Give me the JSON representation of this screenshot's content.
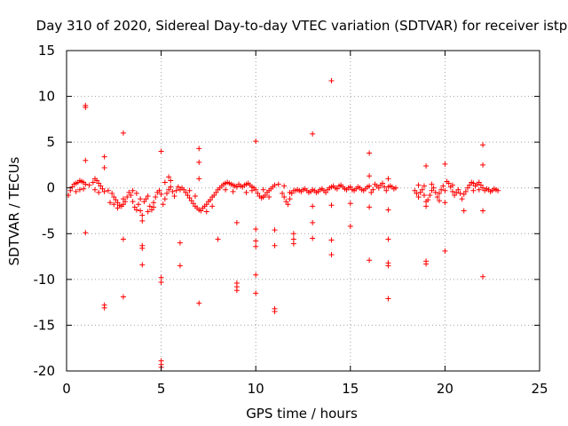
{
  "chart_data": {
    "type": "scatter",
    "title": "Day 310 of 2020, Sidereal Day-to-day VTEC variation (SDTVAR) for receiver istp",
    "xlabel": "GPS time / hours",
    "ylabel": "SDTVAR / TECUs",
    "xlim": [
      0,
      25
    ],
    "ylim": [
      -20,
      15
    ],
    "xticks": [
      "0",
      "5",
      "10",
      "15",
      "20",
      "25"
    ],
    "yticks": [
      "15",
      "10",
      "5",
      "0",
      "-5",
      "-10",
      "-15",
      "-20"
    ],
    "grid": true,
    "marker": "plus",
    "marker_color": "#ff0000",
    "series": [
      {
        "name": "SDTVAR",
        "points": [
          [
            0.1,
            -0.8
          ],
          [
            0.2,
            -0.3
          ],
          [
            0.3,
            0.1
          ],
          [
            0.4,
            0.4
          ],
          [
            0.5,
            0.5
          ],
          [
            0.6,
            0.6
          ],
          [
            0.7,
            0.8
          ],
          [
            0.8,
            0.7
          ],
          [
            0.9,
            0.6
          ],
          [
            1.0,
            0.4
          ],
          [
            0.5,
            -0.4
          ],
          [
            0.7,
            -0.2
          ],
          [
            0.9,
            -0.1
          ],
          [
            1.0,
            8.8
          ],
          [
            1.0,
            9.0
          ],
          [
            1.0,
            3.0
          ],
          [
            1.0,
            -4.9
          ],
          [
            1.2,
            0.3
          ],
          [
            1.4,
            0.6
          ],
          [
            1.5,
            1.0
          ],
          [
            1.6,
            0.8
          ],
          [
            1.7,
            0.5
          ],
          [
            1.8,
            0.2
          ],
          [
            1.9,
            -0.1
          ],
          [
            2.0,
            -0.4
          ],
          [
            1.5,
            -0.2
          ],
          [
            1.7,
            -0.5
          ],
          [
            2.0,
            3.4
          ],
          [
            2.0,
            2.2
          ],
          [
            2.0,
            -12.8
          ],
          [
            2.0,
            -13.1
          ],
          [
            2.2,
            -0.3
          ],
          [
            2.4,
            -0.6
          ],
          [
            2.5,
            -1.0
          ],
          [
            2.6,
            -1.3
          ],
          [
            2.7,
            -1.6
          ],
          [
            2.8,
            -1.9
          ],
          [
            2.9,
            -2.0
          ],
          [
            3.0,
            -1.8
          ],
          [
            2.3,
            -1.6
          ],
          [
            2.5,
            -1.8
          ],
          [
            2.7,
            -2.2
          ],
          [
            3.0,
            -1.2
          ],
          [
            3.0,
            6.0
          ],
          [
            3.0,
            -5.6
          ],
          [
            3.0,
            -11.9
          ],
          [
            3.1,
            -1.5
          ],
          [
            3.2,
            -1.0
          ],
          [
            3.3,
            -0.5
          ],
          [
            3.4,
            -0.8
          ],
          [
            3.5,
            -1.5
          ],
          [
            3.6,
            -2.1
          ],
          [
            3.7,
            -2.4
          ],
          [
            3.8,
            -1.8
          ],
          [
            3.9,
            -2.5
          ],
          [
            4.0,
            -3.0
          ],
          [
            3.5,
            -0.3
          ],
          [
            3.7,
            -0.6
          ],
          [
            3.9,
            -1.2
          ],
          [
            4.0,
            -6.3
          ],
          [
            4.0,
            -6.6
          ],
          [
            4.0,
            -8.4
          ],
          [
            4.0,
            -3.6
          ],
          [
            4.1,
            -1.5
          ],
          [
            4.2,
            -1.2
          ],
          [
            4.3,
            -0.9
          ],
          [
            4.4,
            -2.0
          ],
          [
            4.5,
            -2.4
          ],
          [
            4.6,
            -1.6
          ],
          [
            4.7,
            -1.0
          ],
          [
            4.8,
            -0.5
          ],
          [
            4.9,
            -0.3
          ],
          [
            5.0,
            -0.7
          ],
          [
            4.3,
            -2.6
          ],
          [
            4.6,
            -2.1
          ],
          [
            5.0,
            4.0
          ],
          [
            5.0,
            -9.8
          ],
          [
            5.0,
            -10.3
          ],
          [
            5.0,
            -18.9
          ],
          [
            5.0,
            -19.3
          ],
          [
            5.0,
            -19.6
          ],
          [
            5.1,
            -1.8
          ],
          [
            5.2,
            -1.2
          ],
          [
            5.3,
            -0.6
          ],
          [
            5.4,
            -0.2
          ],
          [
            5.5,
            0.1
          ],
          [
            5.6,
            -0.4
          ],
          [
            5.7,
            -0.9
          ],
          [
            5.8,
            -0.3
          ],
          [
            5.9,
            0.1
          ],
          [
            6.0,
            -0.2
          ],
          [
            5.2,
            0.6
          ],
          [
            5.4,
            1.2
          ],
          [
            5.5,
            0.8
          ],
          [
            6.0,
            -6.0
          ],
          [
            6.0,
            -8.5
          ],
          [
            6.1,
            0.0
          ],
          [
            6.2,
            -0.2
          ],
          [
            6.3,
            -0.5
          ],
          [
            6.4,
            -0.8
          ],
          [
            6.5,
            -1.1
          ],
          [
            6.6,
            -1.4
          ],
          [
            6.7,
            -1.7
          ],
          [
            6.8,
            -2.0
          ],
          [
            6.9,
            -2.2
          ],
          [
            7.0,
            -2.4
          ],
          [
            6.5,
            -0.3
          ],
          [
            6.8,
            -0.9
          ],
          [
            7.0,
            4.3
          ],
          [
            7.0,
            2.8
          ],
          [
            7.0,
            1.0
          ],
          [
            7.0,
            -12.6
          ],
          [
            7.1,
            -2.5
          ],
          [
            7.2,
            -2.2
          ],
          [
            7.3,
            -2.0
          ],
          [
            7.4,
            -1.8
          ],
          [
            7.5,
            -1.5
          ],
          [
            7.6,
            -1.3
          ],
          [
            7.7,
            -1.0
          ],
          [
            7.8,
            -0.8
          ],
          [
            7.9,
            -0.5
          ],
          [
            8.0,
            -0.2
          ],
          [
            7.4,
            -2.6
          ],
          [
            7.7,
            -2.0
          ],
          [
            8.0,
            -5.6
          ],
          [
            8.1,
            0.0
          ],
          [
            8.2,
            0.2
          ],
          [
            8.3,
            0.4
          ],
          [
            8.4,
            0.5
          ],
          [
            8.5,
            0.6
          ],
          [
            8.6,
            0.5
          ],
          [
            8.7,
            0.4
          ],
          [
            8.8,
            0.3
          ],
          [
            8.9,
            0.2
          ],
          [
            9.0,
            0.1
          ],
          [
            8.4,
            -0.2
          ],
          [
            8.8,
            -0.4
          ],
          [
            9.0,
            -3.8
          ],
          [
            9.0,
            -10.4
          ],
          [
            9.0,
            -10.8
          ],
          [
            9.0,
            -11.2
          ],
          [
            9.1,
            0.4
          ],
          [
            9.2,
            0.2
          ],
          [
            9.3,
            0.1
          ],
          [
            9.4,
            0.3
          ],
          [
            9.5,
            0.4
          ],
          [
            9.6,
            0.5
          ],
          [
            9.7,
            0.3
          ],
          [
            9.8,
            0.1
          ],
          [
            9.9,
            0.0
          ],
          [
            10.0,
            -0.2
          ],
          [
            9.5,
            -0.5
          ],
          [
            9.8,
            -0.3
          ],
          [
            10.0,
            5.1
          ],
          [
            10.0,
            -4.5
          ],
          [
            10.0,
            -5.8
          ],
          [
            10.0,
            -6.4
          ],
          [
            10.0,
            -9.5
          ],
          [
            10.0,
            -11.5
          ],
          [
            10.1,
            -0.6
          ],
          [
            10.2,
            -0.9
          ],
          [
            10.3,
            -1.1
          ],
          [
            10.4,
            -1.0
          ],
          [
            10.5,
            -0.8
          ],
          [
            10.6,
            -0.5
          ],
          [
            10.7,
            -0.3
          ],
          [
            10.8,
            -0.1
          ],
          [
            10.9,
            0.1
          ],
          [
            11.0,
            0.3
          ],
          [
            10.4,
            -0.2
          ],
          [
            10.7,
            -1.0
          ],
          [
            11.0,
            -4.6
          ],
          [
            11.0,
            -6.3
          ],
          [
            11.0,
            -13.2
          ],
          [
            11.0,
            -13.5
          ],
          [
            11.2,
            0.4
          ],
          [
            11.4,
            -0.6
          ],
          [
            11.5,
            -1.0
          ],
          [
            11.6,
            -1.5
          ],
          [
            11.7,
            -1.8
          ],
          [
            11.8,
            -1.2
          ],
          [
            11.9,
            -0.6
          ],
          [
            12.0,
            -0.3
          ],
          [
            11.5,
            0.2
          ],
          [
            11.8,
            -0.5
          ],
          [
            12.0,
            -5.0
          ],
          [
            12.0,
            -5.6
          ],
          [
            12.0,
            -6.1
          ],
          [
            12.1,
            -0.3
          ],
          [
            12.2,
            -0.2
          ],
          [
            12.3,
            -0.3
          ],
          [
            12.4,
            -0.4
          ],
          [
            12.5,
            -0.2
          ],
          [
            12.6,
            -0.1
          ],
          [
            12.7,
            -0.3
          ],
          [
            12.8,
            -0.5
          ],
          [
            12.9,
            -0.4
          ],
          [
            13.0,
            -0.2
          ],
          [
            13.0,
            5.9
          ],
          [
            13.0,
            -2.0
          ],
          [
            13.0,
            -3.8
          ],
          [
            13.0,
            -5.5
          ],
          [
            13.1,
            -0.3
          ],
          [
            13.2,
            -0.5
          ],
          [
            13.3,
            -0.4
          ],
          [
            13.4,
            -0.2
          ],
          [
            13.5,
            -0.1
          ],
          [
            13.6,
            -0.3
          ],
          [
            13.7,
            -0.5
          ],
          [
            13.8,
            -0.2
          ],
          [
            13.9,
            0.0
          ],
          [
            14.0,
            0.1
          ],
          [
            14.0,
            11.7
          ],
          [
            14.0,
            -1.9
          ],
          [
            14.0,
            -5.7
          ],
          [
            14.0,
            -7.3
          ],
          [
            14.1,
            0.2
          ],
          [
            14.2,
            0.0
          ],
          [
            14.3,
            -0.1
          ],
          [
            14.4,
            0.2
          ],
          [
            14.5,
            0.3
          ],
          [
            14.6,
            0.1
          ],
          [
            14.7,
            -0.1
          ],
          [
            14.8,
            -0.2
          ],
          [
            14.9,
            0.0
          ],
          [
            15.0,
            0.1
          ],
          [
            15.0,
            -1.7
          ],
          [
            15.0,
            -4.2
          ],
          [
            15.1,
            -0.2
          ],
          [
            15.2,
            -0.3
          ],
          [
            15.3,
            -0.1
          ],
          [
            15.4,
            0.1
          ],
          [
            15.5,
            0.0
          ],
          [
            15.6,
            -0.2
          ],
          [
            15.7,
            -0.3
          ],
          [
            15.8,
            -0.1
          ],
          [
            15.9,
            0.1
          ],
          [
            16.0,
            0.2
          ],
          [
            16.0,
            3.8
          ],
          [
            16.0,
            1.3
          ],
          [
            16.0,
            -2.1
          ],
          [
            16.0,
            -7.9
          ],
          [
            16.1,
            -0.5
          ],
          [
            16.2,
            -0.2
          ],
          [
            16.3,
            0.4
          ],
          [
            16.4,
            0.2
          ],
          [
            16.5,
            0.0
          ],
          [
            16.6,
            0.3
          ],
          [
            16.7,
            0.5
          ],
          [
            16.8,
            0.1
          ],
          [
            16.9,
            -0.3
          ],
          [
            17.0,
            0.1
          ],
          [
            17.0,
            1.0
          ],
          [
            17.0,
            -2.4
          ],
          [
            17.0,
            -5.6
          ],
          [
            17.0,
            -8.2
          ],
          [
            17.0,
            -8.5
          ],
          [
            17.0,
            -12.1
          ],
          [
            17.1,
            0.2
          ],
          [
            17.2,
            0.1
          ],
          [
            17.3,
            -0.1
          ],
          [
            17.4,
            0.0
          ],
          [
            18.4,
            -0.3
          ],
          [
            18.5,
            -0.6
          ],
          [
            18.6,
            -1.0
          ],
          [
            18.7,
            -0.5
          ],
          [
            18.8,
            -0.2
          ],
          [
            18.9,
            -0.8
          ],
          [
            19.0,
            -1.5
          ],
          [
            18.6,
            0.3
          ],
          [
            18.9,
            0.2
          ],
          [
            19.0,
            2.4
          ],
          [
            19.0,
            -2.0
          ],
          [
            19.0,
            -8.0
          ],
          [
            19.0,
            -8.3
          ],
          [
            19.1,
            -1.3
          ],
          [
            19.2,
            -0.8
          ],
          [
            19.3,
            -0.3
          ],
          [
            19.4,
            0.0
          ],
          [
            19.5,
            -0.5
          ],
          [
            19.6,
            -1.0
          ],
          [
            19.7,
            -0.6
          ],
          [
            19.8,
            -0.2
          ],
          [
            19.9,
            0.2
          ],
          [
            20.0,
            -0.3
          ],
          [
            19.3,
            0.4
          ],
          [
            19.7,
            -1.4
          ],
          [
            20.0,
            2.6
          ],
          [
            20.0,
            -1.6
          ],
          [
            20.0,
            -6.9
          ],
          [
            20.1,
            0.7
          ],
          [
            20.2,
            0.5
          ],
          [
            20.3,
            0.1
          ],
          [
            20.4,
            -0.4
          ],
          [
            20.5,
            -0.8
          ],
          [
            20.6,
            -0.5
          ],
          [
            20.7,
            -0.2
          ],
          [
            20.8,
            -0.6
          ],
          [
            20.9,
            -1.2
          ],
          [
            21.0,
            -0.7
          ],
          [
            20.4,
            0.3
          ],
          [
            21.0,
            -2.5
          ],
          [
            21.1,
            -0.4
          ],
          [
            21.2,
            0.0
          ],
          [
            21.3,
            0.3
          ],
          [
            21.4,
            0.6
          ],
          [
            21.5,
            0.5
          ],
          [
            21.6,
            0.2
          ],
          [
            21.7,
            0.4
          ],
          [
            21.8,
            0.6
          ],
          [
            21.9,
            0.3
          ],
          [
            22.0,
            0.0
          ],
          [
            21.5,
            -0.3
          ],
          [
            21.8,
            -0.2
          ],
          [
            22.0,
            4.7
          ],
          [
            22.0,
            2.5
          ],
          [
            22.0,
            -2.5
          ],
          [
            22.0,
            -9.7
          ],
          [
            22.1,
            -0.3
          ],
          [
            22.2,
            -0.1
          ],
          [
            22.3,
            -0.2
          ],
          [
            22.4,
            -0.4
          ],
          [
            22.5,
            -0.3
          ],
          [
            22.6,
            -0.1
          ],
          [
            22.7,
            -0.2
          ],
          [
            22.8,
            -0.3
          ]
        ]
      }
    ]
  }
}
